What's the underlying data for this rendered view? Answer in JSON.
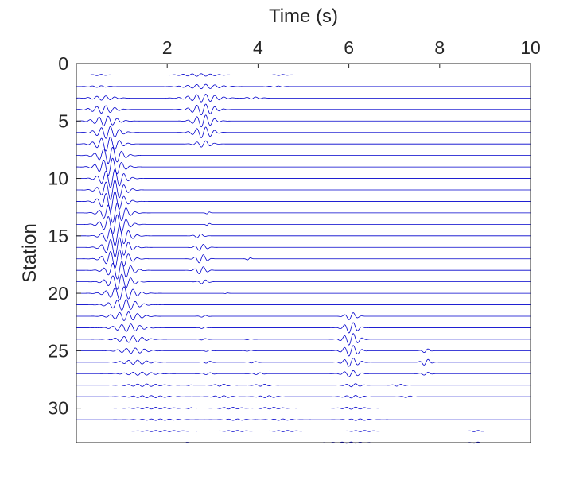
{
  "chart_data": {
    "type": "line",
    "subtype": "seismic-record-section",
    "title": "",
    "xlabel": "Time (s)",
    "ylabel": "Station",
    "xlim": [
      0,
      10
    ],
    "ylim": [
      0,
      33
    ],
    "y_reversed": true,
    "x_axis_position": "top",
    "xticks": [
      2,
      4,
      6,
      8,
      10
    ],
    "yticks": [
      0,
      5,
      10,
      15,
      20,
      25,
      30
    ],
    "grid": false,
    "legend": "none",
    "colors": {
      "trace": "#0000cc",
      "axis": "#262626",
      "background": "#ffffff"
    },
    "stations": [
      1,
      2,
      3,
      4,
      5,
      6,
      7,
      8,
      9,
      10,
      11,
      12,
      13,
      14,
      15,
      16,
      17,
      18,
      19,
      20,
      21,
      22,
      23,
      24,
      25,
      26,
      27,
      28,
      29,
      30,
      31,
      32,
      33
    ],
    "wave_packets": [
      {
        "station": 1,
        "t": 0.5,
        "amp": 0.06,
        "w": 0.2
      },
      {
        "station": 1,
        "t": 2.7,
        "amp": 0.12,
        "w": 0.45
      },
      {
        "station": 1,
        "t": 4.5,
        "amp": 0.05,
        "w": 0.2
      },
      {
        "station": 2,
        "t": 0.5,
        "amp": 0.08,
        "w": 0.25
      },
      {
        "station": 2,
        "t": 2.8,
        "amp": 0.2,
        "w": 0.45
      },
      {
        "station": 2,
        "t": 4.4,
        "amp": 0.06,
        "w": 0.2
      },
      {
        "station": 3,
        "t": 0.6,
        "amp": 0.2,
        "w": 0.3
      },
      {
        "station": 3,
        "t": 2.8,
        "amp": 0.35,
        "w": 0.4
      },
      {
        "station": 3,
        "t": 3.9,
        "amp": 0.1,
        "w": 0.2
      },
      {
        "station": 4,
        "t": 0.6,
        "amp": 0.35,
        "w": 0.3
      },
      {
        "station": 4,
        "t": 2.8,
        "amp": 0.5,
        "w": 0.3
      },
      {
        "station": 5,
        "t": 0.65,
        "amp": 0.45,
        "w": 0.3
      },
      {
        "station": 5,
        "t": 2.8,
        "amp": 0.55,
        "w": 0.25
      },
      {
        "station": 6,
        "t": 0.7,
        "amp": 0.55,
        "w": 0.3
      },
      {
        "station": 6,
        "t": 2.8,
        "amp": 0.5,
        "w": 0.25
      },
      {
        "station": 7,
        "t": 0.7,
        "amp": 0.65,
        "w": 0.3
      },
      {
        "station": 7,
        "t": 2.8,
        "amp": 0.3,
        "w": 0.2
      },
      {
        "station": 8,
        "t": 0.75,
        "amp": 0.75,
        "w": 0.3
      },
      {
        "station": 9,
        "t": 0.75,
        "amp": 0.8,
        "w": 0.3
      },
      {
        "station": 10,
        "t": 0.8,
        "amp": 0.85,
        "w": 0.3
      },
      {
        "station": 11,
        "t": 0.8,
        "amp": 0.9,
        "w": 0.3
      },
      {
        "station": 12,
        "t": 0.8,
        "amp": 0.9,
        "w": 0.3
      },
      {
        "station": 13,
        "t": 0.85,
        "amp": 0.9,
        "w": 0.3
      },
      {
        "station": 13,
        "t": 2.9,
        "amp": 0.15,
        "w": 0.05
      },
      {
        "station": 14,
        "t": 0.85,
        "amp": 0.9,
        "w": 0.3
      },
      {
        "station": 14,
        "t": 2.9,
        "amp": 0.15,
        "w": 0.05
      },
      {
        "station": 15,
        "t": 0.9,
        "amp": 0.9,
        "w": 0.3
      },
      {
        "station": 15,
        "t": 2.7,
        "amp": 0.2,
        "w": 0.12
      },
      {
        "station": 16,
        "t": 0.9,
        "amp": 0.9,
        "w": 0.3
      },
      {
        "station": 16,
        "t": 2.75,
        "amp": 0.3,
        "w": 0.15
      },
      {
        "station": 17,
        "t": 0.9,
        "amp": 0.85,
        "w": 0.3
      },
      {
        "station": 17,
        "t": 2.75,
        "amp": 0.4,
        "w": 0.15
      },
      {
        "station": 17,
        "t": 3.8,
        "amp": 0.15,
        "w": 0.06
      },
      {
        "station": 18,
        "t": 0.95,
        "amp": 0.8,
        "w": 0.3
      },
      {
        "station": 18,
        "t": 2.75,
        "amp": 0.35,
        "w": 0.15
      },
      {
        "station": 19,
        "t": 0.95,
        "amp": 0.7,
        "w": 0.3
      },
      {
        "station": 19,
        "t": 2.8,
        "amp": 0.2,
        "w": 0.12
      },
      {
        "station": 20,
        "t": 1.0,
        "amp": 0.6,
        "w": 0.35
      },
      {
        "station": 20,
        "t": 3.3,
        "amp": 0.05,
        "w": 0.05
      },
      {
        "station": 21,
        "t": 1.05,
        "amp": 0.5,
        "w": 0.35
      },
      {
        "station": 22,
        "t": 1.1,
        "amp": 0.4,
        "w": 0.35
      },
      {
        "station": 22,
        "t": 2.8,
        "amp": 0.1,
        "w": 0.1
      },
      {
        "station": 22,
        "t": 6.05,
        "amp": 0.35,
        "w": 0.15
      },
      {
        "station": 23,
        "t": 1.15,
        "amp": 0.35,
        "w": 0.35
      },
      {
        "station": 23,
        "t": 2.8,
        "amp": 0.08,
        "w": 0.1
      },
      {
        "station": 23,
        "t": 6.05,
        "amp": 0.5,
        "w": 0.18
      },
      {
        "station": 24,
        "t": 1.2,
        "amp": 0.3,
        "w": 0.35
      },
      {
        "station": 24,
        "t": 2.8,
        "amp": 0.08,
        "w": 0.1
      },
      {
        "station": 24,
        "t": 3.8,
        "amp": 0.05,
        "w": 0.1
      },
      {
        "station": 24,
        "t": 6.05,
        "amp": 0.55,
        "w": 0.2
      },
      {
        "station": 25,
        "t": 1.25,
        "amp": 0.25,
        "w": 0.35
      },
      {
        "station": 25,
        "t": 2.9,
        "amp": 0.08,
        "w": 0.1
      },
      {
        "station": 25,
        "t": 3.8,
        "amp": 0.06,
        "w": 0.1
      },
      {
        "station": 25,
        "t": 6.05,
        "amp": 0.5,
        "w": 0.2
      },
      {
        "station": 25,
        "t": 7.7,
        "amp": 0.2,
        "w": 0.1
      },
      {
        "station": 26,
        "t": 1.3,
        "amp": 0.2,
        "w": 0.35
      },
      {
        "station": 26,
        "t": 2.9,
        "amp": 0.1,
        "w": 0.12
      },
      {
        "station": 26,
        "t": 3.9,
        "amp": 0.08,
        "w": 0.12
      },
      {
        "station": 26,
        "t": 6.05,
        "amp": 0.4,
        "w": 0.2
      },
      {
        "station": 26,
        "t": 7.7,
        "amp": 0.3,
        "w": 0.12
      },
      {
        "station": 27,
        "t": 1.4,
        "amp": 0.15,
        "w": 0.4
      },
      {
        "station": 27,
        "t": 2.9,
        "amp": 0.1,
        "w": 0.15
      },
      {
        "station": 27,
        "t": 4.0,
        "amp": 0.1,
        "w": 0.15
      },
      {
        "station": 27,
        "t": 6.05,
        "amp": 0.3,
        "w": 0.2
      },
      {
        "station": 27,
        "t": 7.7,
        "amp": 0.15,
        "w": 0.12
      },
      {
        "station": 28,
        "t": 1.5,
        "amp": 0.12,
        "w": 0.45
      },
      {
        "station": 28,
        "t": 2.5,
        "amp": 0.06,
        "w": 0.05
      },
      {
        "station": 28,
        "t": 3.2,
        "amp": 0.1,
        "w": 0.2
      },
      {
        "station": 28,
        "t": 4.1,
        "amp": 0.1,
        "w": 0.2
      },
      {
        "station": 28,
        "t": 6.1,
        "amp": 0.15,
        "w": 0.2
      },
      {
        "station": 28,
        "t": 7.1,
        "amp": 0.1,
        "w": 0.15
      },
      {
        "station": 29,
        "t": 1.6,
        "amp": 0.1,
        "w": 0.5
      },
      {
        "station": 29,
        "t": 3.2,
        "amp": 0.1,
        "w": 0.25
      },
      {
        "station": 29,
        "t": 4.2,
        "amp": 0.1,
        "w": 0.25
      },
      {
        "station": 29,
        "t": 6.1,
        "amp": 0.12,
        "w": 0.25
      },
      {
        "station": 29,
        "t": 7.3,
        "amp": 0.08,
        "w": 0.15
      },
      {
        "station": 30,
        "t": 1.7,
        "amp": 0.08,
        "w": 0.5
      },
      {
        "station": 30,
        "t": 2.5,
        "amp": 0.08,
        "w": 0.05
      },
      {
        "station": 30,
        "t": 3.4,
        "amp": 0.08,
        "w": 0.3
      },
      {
        "station": 30,
        "t": 4.3,
        "amp": 0.08,
        "w": 0.3
      },
      {
        "station": 30,
        "t": 6.1,
        "amp": 0.1,
        "w": 0.3
      },
      {
        "station": 31,
        "t": 1.8,
        "amp": 0.07,
        "w": 0.5
      },
      {
        "station": 31,
        "t": 3.5,
        "amp": 0.07,
        "w": 0.3
      },
      {
        "station": 31,
        "t": 4.5,
        "amp": 0.07,
        "w": 0.3
      },
      {
        "station": 31,
        "t": 6.2,
        "amp": 0.08,
        "w": 0.3
      },
      {
        "station": 32,
        "t": 1.9,
        "amp": 0.06,
        "w": 0.55
      },
      {
        "station": 32,
        "t": 3.5,
        "amp": 0.06,
        "w": 0.3
      },
      {
        "station": 32,
        "t": 4.6,
        "amp": 0.06,
        "w": 0.3
      },
      {
        "station": 32,
        "t": 6.3,
        "amp": 0.06,
        "w": 0.3
      },
      {
        "station": 32,
        "t": 8.8,
        "amp": 0.06,
        "w": 0.15
      },
      {
        "station": 33,
        "t": 2.4,
        "amp": 0.05,
        "w": 0.08
      },
      {
        "station": 33,
        "t": 6.0,
        "amp": 0.06,
        "w": 0.45
      },
      {
        "station": 33,
        "t": 8.8,
        "amp": 0.06,
        "w": 0.15
      }
    ]
  }
}
